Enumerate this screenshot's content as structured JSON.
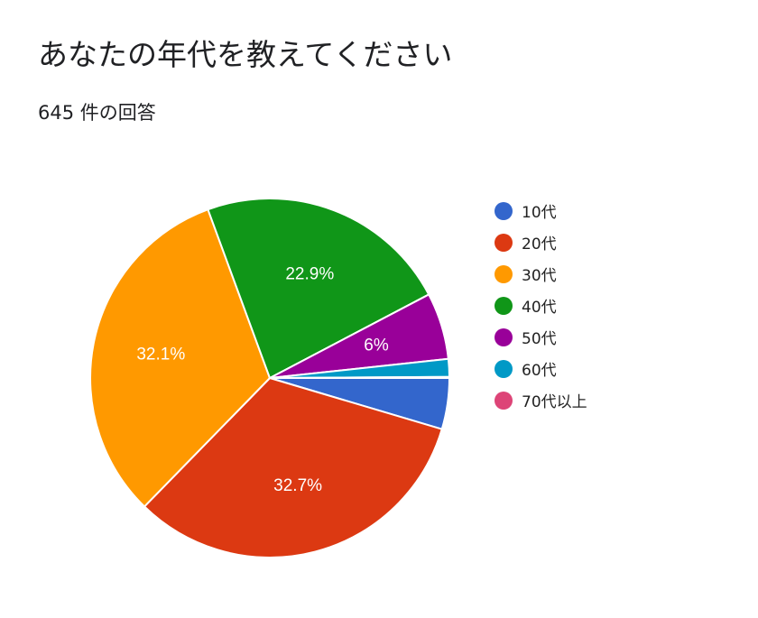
{
  "header": {
    "title": "あなたの年代を教えてください",
    "response_count": "645 件の回答"
  },
  "chart_data": {
    "type": "pie",
    "title": "あなたの年代を教えてください",
    "subtitle": "645 件の回答",
    "categories": [
      "10代",
      "20代",
      "30代",
      "40代",
      "50代",
      "60代",
      "70代以上"
    ],
    "values": [
      4.6,
      32.7,
      32.1,
      22.9,
      6.0,
      1.6,
      0.1
    ],
    "data_labels": [
      "",
      "32.7%",
      "32.1%",
      "22.9%",
      "6%",
      "",
      ""
    ],
    "colors": [
      "#3366cc",
      "#dc3912",
      "#ff9900",
      "#109618",
      "#990099",
      "#0099c6",
      "#dd4477"
    ],
    "legend_position": "right",
    "start_angle": "3 o'clock",
    "direction": "clockwise"
  }
}
